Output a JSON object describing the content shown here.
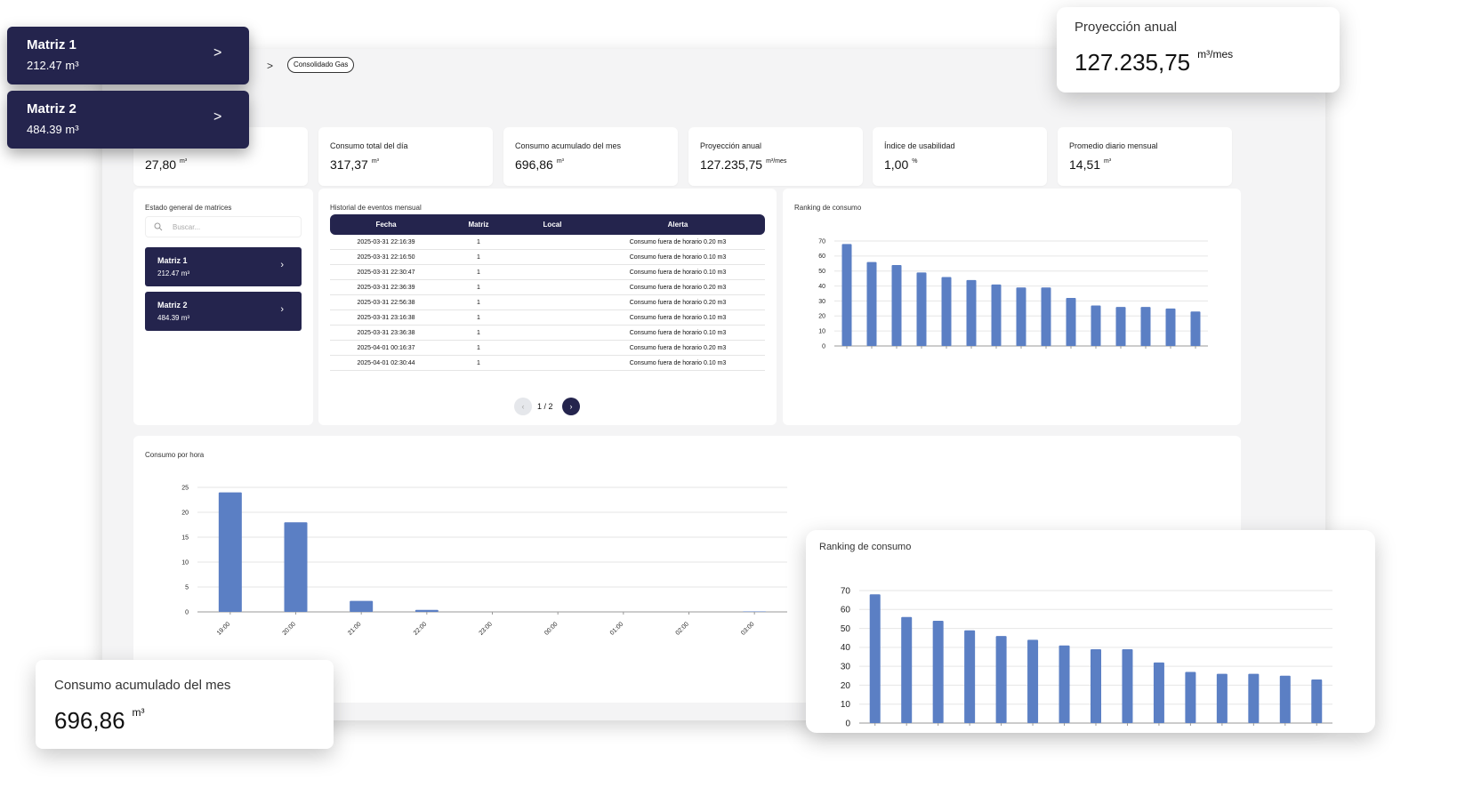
{
  "breadcrumb": {
    "separator": ">",
    "current": "Consolidado Gas"
  },
  "kpis": [
    {
      "value": "27,80",
      "unit": "m³"
    },
    {
      "label": "Consumo total del día",
      "value": "317,37",
      "unit": "m³"
    },
    {
      "label": "Consumo acumulado del mes",
      "value": "696,86",
      "unit": "m³"
    },
    {
      "label": "Proyección anual",
      "value": "127.235,75",
      "unit": "m³/mes"
    },
    {
      "label": "Índice de usabilidad",
      "value": "1,00",
      "unit": "%"
    },
    {
      "label": "Promedio diario mensual",
      "value": "14,51",
      "unit": "m³"
    }
  ],
  "matrices_panel": {
    "title": "Estado general de matrices",
    "search_placeholder": "Buscar...",
    "items": [
      {
        "name": "Matriz 1",
        "value": "212.47 m³"
      },
      {
        "name": "Matriz 2",
        "value": "484.39 m³"
      }
    ]
  },
  "events": {
    "title": "Historial de eventos mensual",
    "columns": [
      "Fecha",
      "Matriz",
      "Local",
      "Alerta"
    ],
    "rows": [
      [
        "2025-03-31 22:16:39",
        "1",
        "",
        "Consumo fuera de horario 0.20 m3"
      ],
      [
        "2025-03-31 22:16:50",
        "1",
        "",
        "Consumo fuera de horario 0.10 m3"
      ],
      [
        "2025-03-31 22:30:47",
        "1",
        "",
        "Consumo fuera de horario 0.10 m3"
      ],
      [
        "2025-03-31 22:36:39",
        "1",
        "",
        "Consumo fuera de horario 0.20 m3"
      ],
      [
        "2025-03-31 22:56:38",
        "1",
        "",
        "Consumo fuera de horario 0.20 m3"
      ],
      [
        "2025-03-31 23:16:38",
        "1",
        "",
        "Consumo fuera de horario 0.10 m3"
      ],
      [
        "2025-03-31 23:36:38",
        "1",
        "",
        "Consumo fuera de horario 0.10 m3"
      ],
      [
        "2025-04-01 00:16:37",
        "1",
        "",
        "Consumo fuera de horario 0.20 m3"
      ],
      [
        "2025-04-01 02:30:44",
        "1",
        "",
        "Consumo fuera de horario 0.10 m3"
      ]
    ],
    "pager": {
      "prev": "‹",
      "next": "›",
      "label": "1 / 2"
    }
  },
  "overlays": {
    "matriz_cards": [
      {
        "name": "Matriz 1",
        "value": "212.47 m³",
        "chevron": ">"
      },
      {
        "name": "Matriz 2",
        "value": "484.39 m³",
        "chevron": ">"
      }
    ],
    "projection": {
      "label": "Proyección anual",
      "value": "127.235,75",
      "unit": "m³/mes"
    },
    "monthly": {
      "label": "Consumo acumulado del mes",
      "value": "696,86",
      "unit": "m³"
    },
    "ranking_title": "Ranking de consumo"
  },
  "colors": {
    "navy": "#24244d",
    "bar": "#5b7fc4",
    "background": "#f4f4f5"
  },
  "chart_data": [
    {
      "id": "ranking",
      "type": "bar",
      "title": "Ranking de consumo",
      "values": [
        68,
        56,
        54,
        49,
        46,
        44,
        41,
        39,
        39,
        32,
        27,
        26,
        26,
        25,
        23
      ],
      "yticks": [
        0,
        10,
        20,
        30,
        40,
        50,
        60,
        70
      ],
      "ylim": [
        0,
        70
      ],
      "grid": true
    },
    {
      "id": "hourly",
      "type": "bar",
      "title": "Consumo por hora",
      "categories": [
        "19:00",
        "20:00",
        "21:00",
        "22:00",
        "23:00",
        "00:00",
        "01:00",
        "02:00",
        "03:00"
      ],
      "values": [
        24,
        18,
        2.2,
        0.4,
        0,
        0,
        0,
        0,
        0.1
      ],
      "yticks": [
        0,
        5,
        10,
        15,
        20,
        25
      ],
      "ylim": [
        0,
        25
      ],
      "grid": true
    }
  ]
}
